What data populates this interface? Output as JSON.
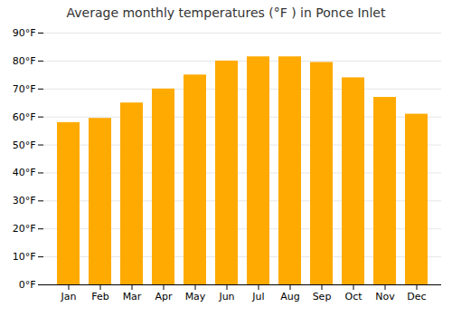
{
  "chart_data": {
    "type": "bar",
    "title": "Average monthly temperatures (°F ) in Ponce Inlet",
    "categories": [
      "Jan",
      "Feb",
      "Mar",
      "Apr",
      "May",
      "Jun",
      "Jul",
      "Aug",
      "Sep",
      "Oct",
      "Nov",
      "Dec"
    ],
    "values": [
      58,
      59.5,
      65,
      70,
      75,
      80,
      81.5,
      81.5,
      79.5,
      74,
      67,
      61
    ],
    "color": "#FFAA00",
    "ylim": [
      0,
      90
    ],
    "yticks": [
      {
        "value": 0,
        "label": "0°F"
      },
      {
        "value": 10,
        "label": "10°F"
      },
      {
        "value": 20,
        "label": "20°F"
      },
      {
        "value": 30,
        "label": "30°F"
      },
      {
        "value": 40,
        "label": "40°F"
      },
      {
        "value": 50,
        "label": "50°F"
      },
      {
        "value": 60,
        "label": "60°F"
      },
      {
        "value": 70,
        "label": "70°F"
      },
      {
        "value": 80,
        "label": "80°F"
      },
      {
        "value": 90,
        "label": "90°F"
      }
    ],
    "grid": true
  }
}
